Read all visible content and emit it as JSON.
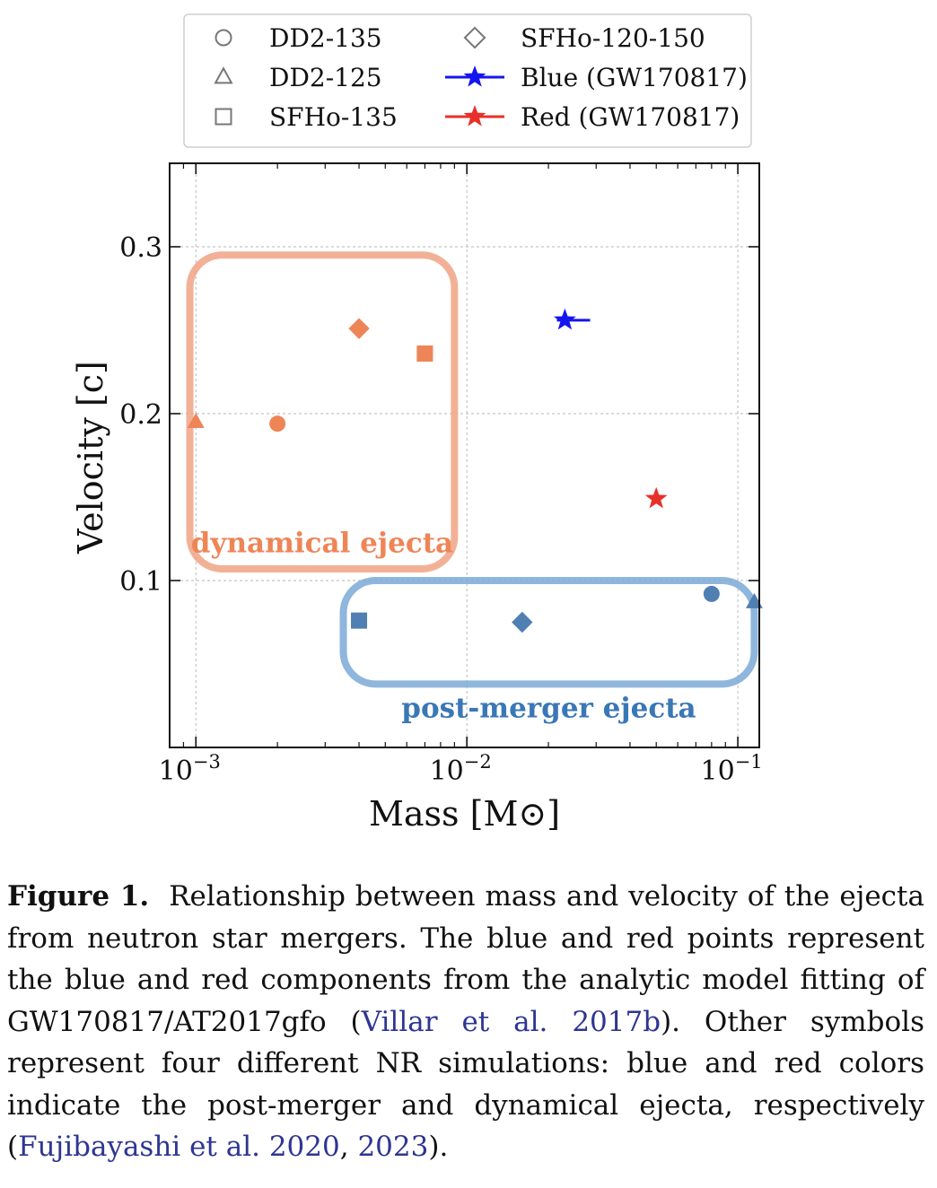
{
  "chart_data": {
    "type": "scatter",
    "xscale": "log",
    "xlim": [
      0.0008,
      0.12
    ],
    "ylim": [
      0.0,
      0.35
    ],
    "xlabel": "Mass [M⊙]",
    "ylabel": "Velocity [c]",
    "x_ticks": [
      {
        "value": 0.001,
        "label_base": "10",
        "label_exp": "−3"
      },
      {
        "value": 0.01,
        "label_base": "10",
        "label_exp": "−2"
      },
      {
        "value": 0.1,
        "label_base": "10",
        "label_exp": "−1"
      }
    ],
    "y_ticks": [
      {
        "value": 0.1,
        "label": "0.1"
      },
      {
        "value": 0.2,
        "label": "0.2"
      },
      {
        "value": 0.3,
        "label": "0.3"
      }
    ],
    "grid": true,
    "legend_position": "top",
    "legend": [
      {
        "label": "DD2-135",
        "marker": "circle"
      },
      {
        "label": "DD2-125",
        "marker": "triangle"
      },
      {
        "label": "SFHo-135",
        "marker": "square"
      },
      {
        "label": "SFHo-120-150",
        "marker": "diamond"
      },
      {
        "label": "Blue (GW170817)",
        "marker": "star",
        "color": "#1515f0"
      },
      {
        "label": "Red (GW170817)",
        "marker": "star",
        "color": "#e8302a"
      }
    ],
    "series": [
      {
        "name": "dynamical ejecta",
        "color": "#ee8557",
        "points": [
          {
            "model": "DD2-125",
            "marker": "triangle",
            "x": 0.001,
            "y": 0.195
          },
          {
            "model": "DD2-135",
            "marker": "circle",
            "x": 0.002,
            "y": 0.194
          },
          {
            "model": "SFHo-120-150",
            "marker": "diamond",
            "x": 0.004,
            "y": 0.251
          },
          {
            "model": "SFHo-135",
            "marker": "square",
            "x": 0.007,
            "y": 0.236
          }
        ]
      },
      {
        "name": "post-merger ejecta",
        "color": "#4f7fb3",
        "points": [
          {
            "model": "SFHo-135",
            "marker": "square",
            "x": 0.004,
            "y": 0.076
          },
          {
            "model": "SFHo-120-150",
            "marker": "diamond",
            "x": 0.016,
            "y": 0.075
          },
          {
            "model": "DD2-135",
            "marker": "circle",
            "x": 0.08,
            "y": 0.092
          },
          {
            "model": "DD2-125",
            "marker": "triangle",
            "x": 0.115,
            "y": 0.087
          }
        ]
      },
      {
        "name": "Blue (GW170817)",
        "color": "#1515f0",
        "points": [
          {
            "marker": "star",
            "x": 0.023,
            "y": 0.256,
            "xerr_low": 0.0015,
            "xerr_high": 0.0055
          }
        ]
      },
      {
        "name": "Red (GW170817)",
        "color": "#e8302a",
        "points": [
          {
            "marker": "star",
            "x": 0.05,
            "y": 0.149
          }
        ]
      }
    ],
    "regions": [
      {
        "label": "dynamical ejecta",
        "color": "#f0a384",
        "text_color": "#ee8557",
        "x_range": [
          0.00095,
          0.009
        ],
        "y_range": [
          0.107,
          0.295
        ]
      },
      {
        "label": "post-merger ejecta",
        "color": "#7ba9d6",
        "text_color": "#3a77b5",
        "x_range": [
          0.0035,
          0.115
        ],
        "y_range": [
          0.038,
          0.1
        ]
      }
    ]
  },
  "caption": {
    "label": "Figure 1.",
    "text_1": "Relationship between mass and velocity of the ejecta from neutron star mergers. The blue and red points represent the blue and red components from the analytic model fitting of GW170817/AT2017gfo (",
    "cite_1": "Villar et al. 2017b",
    "text_2": "). Other symbols represent four different NR simulations: blue and red colors indicate the post-merger and dynamical ejecta, respectively (",
    "cite_2": "Fujibayashi et al. 2020",
    "text_3": ", ",
    "cite_3": "2023",
    "text_4": ")."
  }
}
